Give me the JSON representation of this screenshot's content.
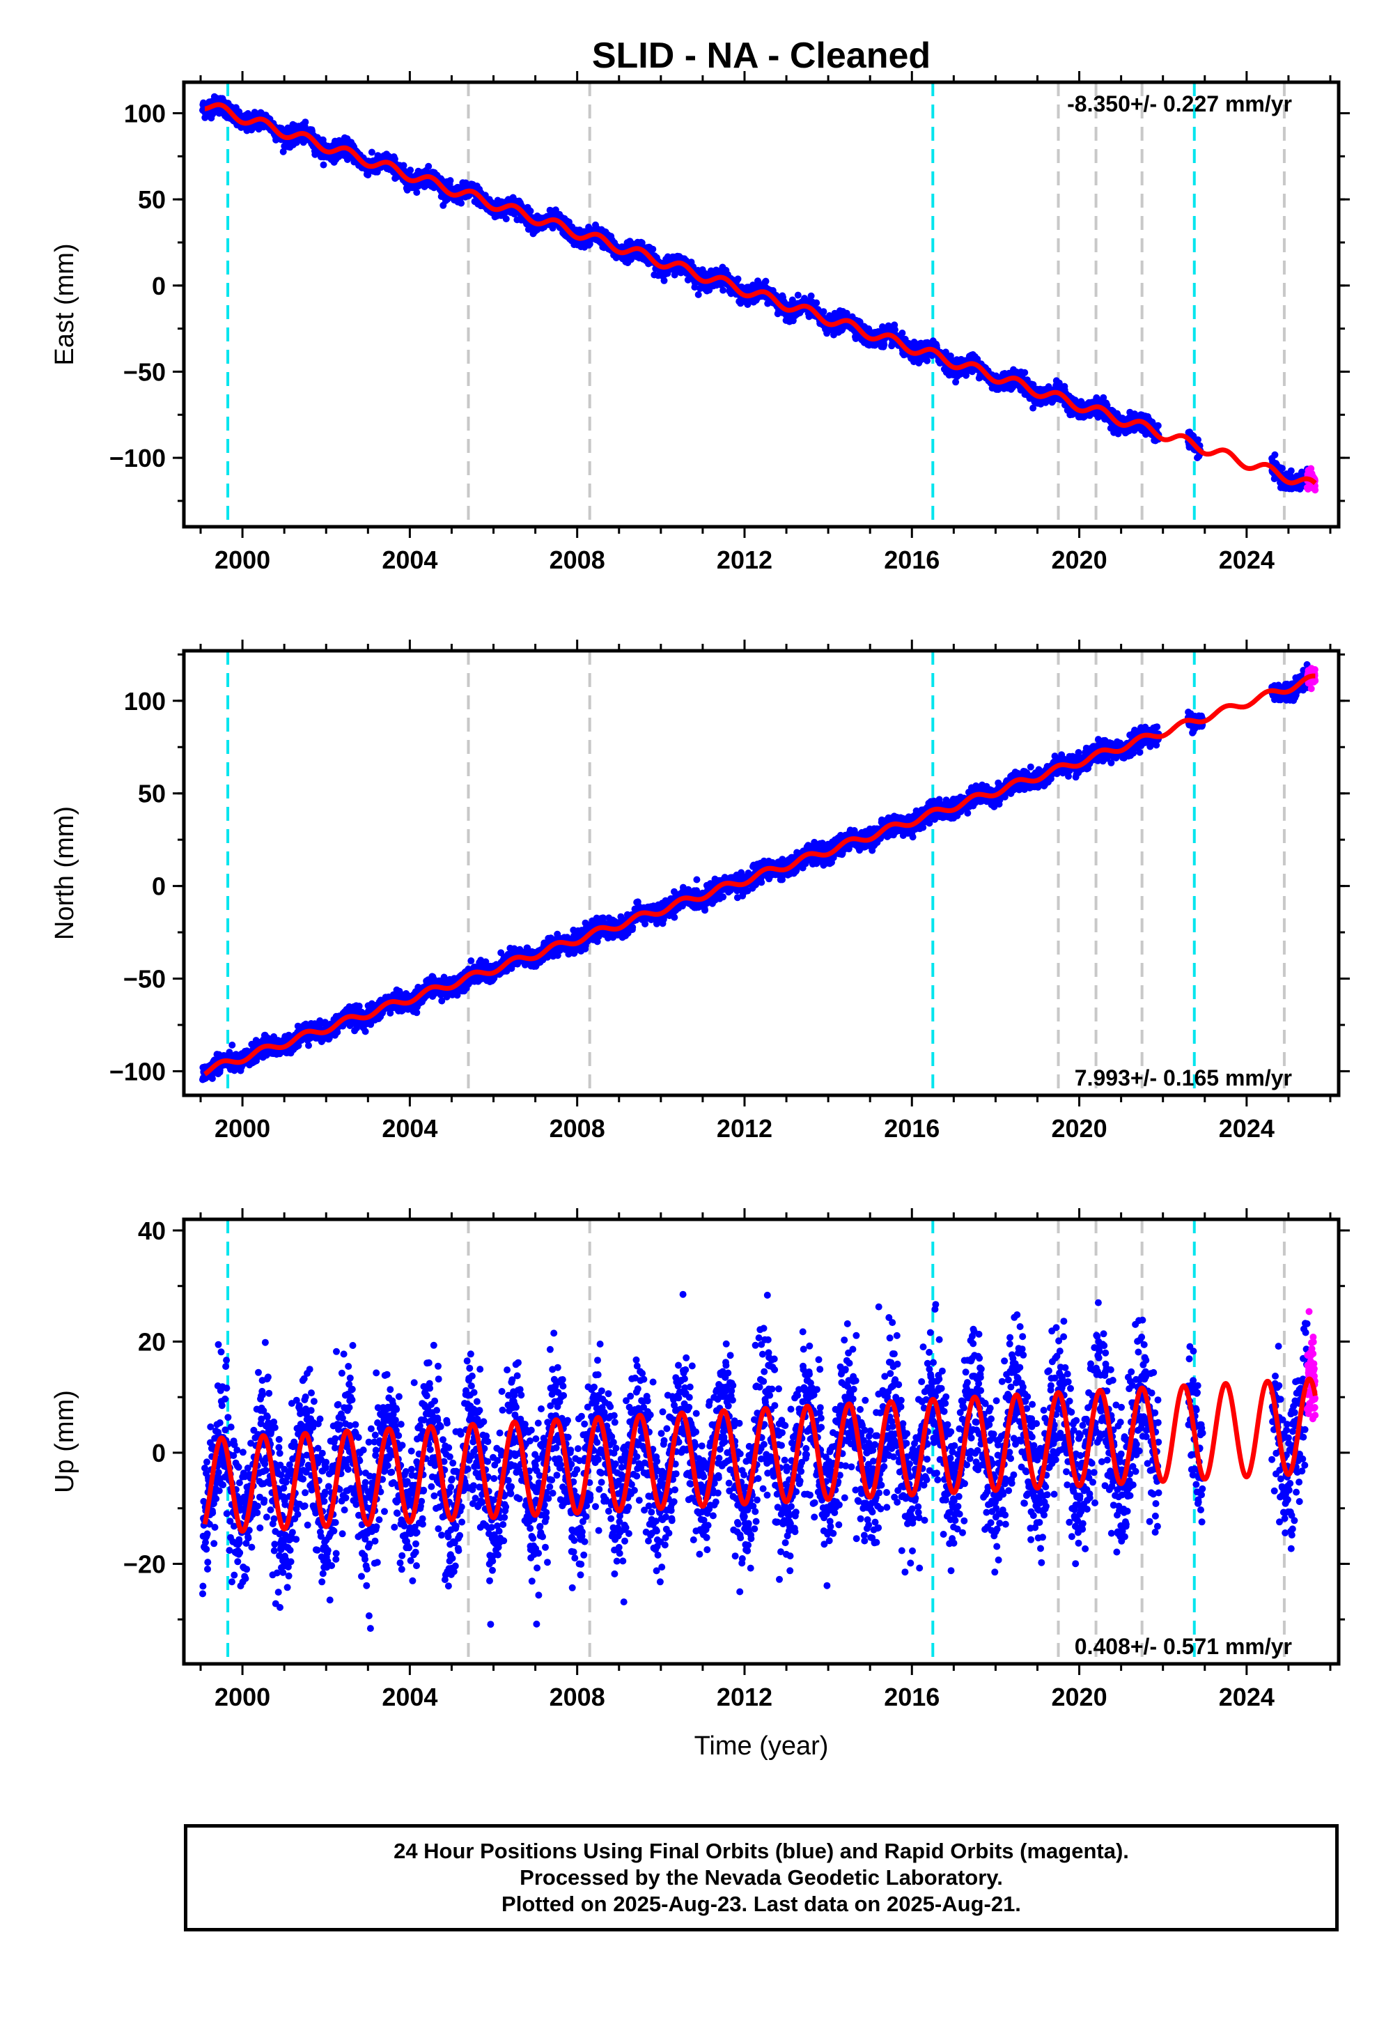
{
  "title": "SLID  - NA - Cleaned",
  "footer": {
    "line1": "24 Hour Positions Using Final Orbits (blue) and Rapid Orbits (magenta).",
    "line2": "Processed by the Nevada Geodetic Laboratory.",
    "line3": "Plotted on 2025-Aug-23. Last data on 2025-Aug-21."
  },
  "colors": {
    "final_orbits": "#0000ff",
    "rapid_orbits": "#ff00ff",
    "model": "#ff0000",
    "equipment_change": "#00e5ee",
    "other_event": "#c8c8c8"
  },
  "chart_data": [
    {
      "type": "scatter",
      "panel": "east",
      "ylabel": "East (mm)",
      "xlabel": "",
      "xlim": [
        1998.6,
        2026.2
      ],
      "ylim": [
        -140,
        118
      ],
      "x_ticks": [
        "2000",
        "2004",
        "2008",
        "2012",
        "2016",
        "2020",
        "2024"
      ],
      "y_ticks": [
        "100",
        "50",
        "0",
        "−50",
        "−100"
      ],
      "y_tick_values": [
        100,
        50,
        0,
        -50,
        -100
      ],
      "rate_label": "-8.350+/- 0.227 mm/yr",
      "rate_label_position": "top-right",
      "model": {
        "start_year": 1999.1,
        "start_value": 105,
        "rate": -8.35,
        "seasonal_amplitude": 3
      },
      "series": [
        {
          "name": "Final Orbits",
          "x_start": 1999.05,
          "x_end": 2025.45,
          "noise": 2.5,
          "gaps": [
            [
              2021.9,
              2022.6
            ],
            [
              2022.9,
              2024.6
            ]
          ]
        },
        {
          "name": "Rapid Orbits",
          "x_start": 2025.45,
          "x_end": 2025.64,
          "noise": 2.0
        }
      ],
      "cyan_lines": [
        1999.65,
        2016.5,
        2022.75
      ],
      "gray_lines": [
        2005.4,
        2008.3,
        2019.5,
        2020.4,
        2021.5,
        2024.9
      ]
    },
    {
      "type": "scatter",
      "panel": "north",
      "ylabel": "North (mm)",
      "xlabel": "",
      "xlim": [
        1998.6,
        2026.2
      ],
      "ylim": [
        -113,
        127
      ],
      "x_ticks": [
        "2000",
        "2004",
        "2008",
        "2012",
        "2016",
        "2020",
        "2024"
      ],
      "y_ticks": [
        "100",
        "50",
        "0",
        "−50",
        "−100"
      ],
      "y_tick_values": [
        100,
        50,
        0,
        -50,
        -100
      ],
      "rate_label": "7.993+/- 0.165 mm/yr",
      "rate_label_position": "bottom-right",
      "model": {
        "start_year": 1999.1,
        "start_value": -100,
        "rate": 7.993,
        "seasonal_amplitude": 2
      },
      "series": [
        {
          "name": "Final Orbits",
          "x_start": 1999.05,
          "x_end": 2025.45,
          "noise": 2.5,
          "gaps": [
            [
              2021.9,
              2022.6
            ],
            [
              2022.95,
              2024.6
            ]
          ]
        },
        {
          "name": "Rapid Orbits",
          "x_start": 2025.45,
          "x_end": 2025.64,
          "noise": 2.0
        }
      ],
      "cyan_lines": [
        1999.65,
        2016.5,
        2022.75
      ],
      "gray_lines": [
        2005.4,
        2008.3,
        2019.5,
        2020.4,
        2021.5,
        2024.9
      ]
    },
    {
      "type": "scatter",
      "panel": "up",
      "ylabel": "Up (mm)",
      "xlabel": "Time (year)",
      "xlim": [
        1998.6,
        2026.2
      ],
      "ylim": [
        -38,
        42
      ],
      "x_ticks": [
        "2000",
        "2004",
        "2008",
        "2012",
        "2016",
        "2020",
        "2024"
      ],
      "y_ticks": [
        "40",
        "20",
        "0",
        "−20"
      ],
      "y_tick_values": [
        40,
        20,
        0,
        -20
      ],
      "rate_label": "0.408+/- 0.571 mm/yr",
      "rate_label_position": "bottom-right",
      "model": {
        "start_year": 1999.1,
        "start_value": -6,
        "rate": 0.408,
        "seasonal_amplitude": 8.5
      },
      "series": [
        {
          "name": "Final Orbits",
          "x_start": 1999.05,
          "x_end": 2025.45,
          "noise": 6.5,
          "gaps": [
            [
              2021.9,
              2022.6
            ],
            [
              2022.95,
              2024.6
            ]
          ]
        },
        {
          "name": "Rapid Orbits",
          "x_start": 2025.45,
          "x_end": 2025.64,
          "noise": 4.0
        }
      ],
      "cyan_lines": [
        1999.65,
        2016.5,
        2022.75
      ],
      "gray_lines": [
        2005.4,
        2008.3,
        2019.5,
        2020.4,
        2021.5,
        2024.9
      ]
    }
  ]
}
